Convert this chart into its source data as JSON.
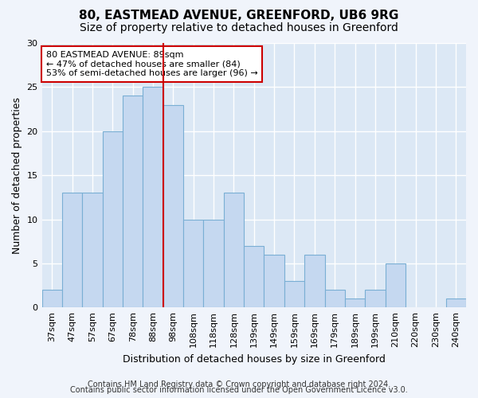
{
  "title": "80, EASTMEAD AVENUE, GREENFORD, UB6 9RG",
  "subtitle": "Size of property relative to detached houses in Greenford",
  "xlabel": "Distribution of detached houses by size in Greenford",
  "ylabel": "Number of detached properties",
  "categories": [
    "37sqm",
    "47sqm",
    "57sqm",
    "67sqm",
    "78sqm",
    "88sqm",
    "98sqm",
    "108sqm",
    "118sqm",
    "128sqm",
    "139sqm",
    "149sqm",
    "159sqm",
    "169sqm",
    "179sqm",
    "189sqm",
    "199sqm",
    "210sqm",
    "220sqm",
    "230sqm",
    "240sqm"
  ],
  "values": [
    2,
    13,
    13,
    20,
    24,
    25,
    23,
    10,
    10,
    13,
    7,
    6,
    3,
    6,
    2,
    1,
    2,
    5,
    0,
    0,
    1
  ],
  "bar_color": "#c5d8f0",
  "bar_edge_color": "#7aafd4",
  "annotation_box_text": "80 EASTMEAD AVENUE: 89sqm\n← 47% of detached houses are smaller (84)\n53% of semi-detached houses are larger (96) →",
  "annotation_box_color": "#ffffff",
  "annotation_box_edge_color": "#cc0000",
  "vline_x": 5.5,
  "vline_color": "#cc0000",
  "ylim": [
    0,
    30
  ],
  "yticks": [
    0,
    5,
    10,
    15,
    20,
    25,
    30
  ],
  "bg_color": "#f0f4fb",
  "plot_bg_color": "#dce8f5",
  "grid_color": "#ffffff",
  "footer_line1": "Contains HM Land Registry data © Crown copyright and database right 2024.",
  "footer_line2": "Contains public sector information licensed under the Open Government Licence v3.0.",
  "title_fontsize": 11,
  "subtitle_fontsize": 10,
  "xlabel_fontsize": 9,
  "ylabel_fontsize": 9,
  "tick_fontsize": 8,
  "footer_fontsize": 7,
  "ann_fontsize": 8
}
